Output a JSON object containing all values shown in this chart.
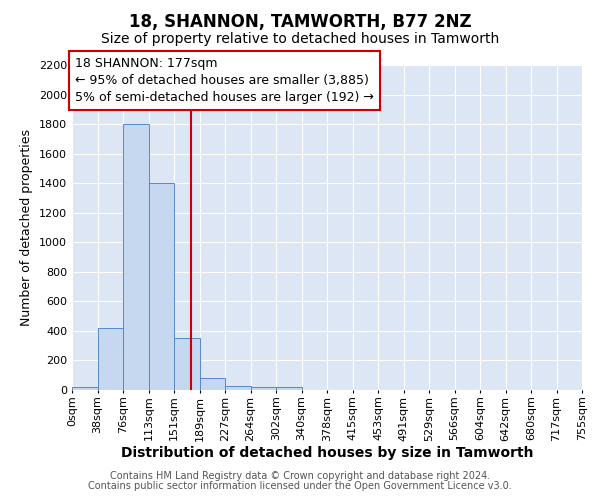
{
  "title": "18, SHANNON, TAMWORTH, B77 2NZ",
  "subtitle": "Size of property relative to detached houses in Tamworth",
  "xlabel": "Distribution of detached houses by size in Tamworth",
  "ylabel": "Number of detached properties",
  "bin_labels": [
    "0sqm",
    "38sqm",
    "76sqm",
    "113sqm",
    "151sqm",
    "189sqm",
    "227sqm",
    "264sqm",
    "302sqm",
    "340sqm",
    "378sqm",
    "415sqm",
    "453sqm",
    "491sqm",
    "529sqm",
    "566sqm",
    "604sqm",
    "642sqm",
    "680sqm",
    "717sqm",
    "755sqm"
  ],
  "bar_values": [
    20,
    420,
    1800,
    1400,
    350,
    80,
    30,
    20,
    20,
    0,
    0,
    0,
    0,
    0,
    0,
    0,
    0,
    0,
    0,
    0
  ],
  "bar_color": "#c5d8ef",
  "bar_edge_color": "#5588cc",
  "red_line_x": 4.68,
  "annotation_text": "18 SHANNON: 177sqm\n← 95% of detached houses are smaller (3,885)\n5% of semi-detached houses are larger (192) →",
  "annotation_box_color": "#ffffff",
  "annotation_box_edge_color": "#cc0000",
  "ylim": [
    0,
    2200
  ],
  "yticks": [
    0,
    200,
    400,
    600,
    800,
    1000,
    1200,
    1400,
    1600,
    1800,
    2000,
    2200
  ],
  "footer_line1": "Contains HM Land Registry data © Crown copyright and database right 2024.",
  "footer_line2": "Contains public sector information licensed under the Open Government Licence v3.0.",
  "fig_background": "#ffffff",
  "plot_background": "#dce6f5",
  "grid_color": "#ffffff",
  "title_fontsize": 12,
  "subtitle_fontsize": 10,
  "xlabel_fontsize": 10,
  "ylabel_fontsize": 9,
  "tick_fontsize": 8,
  "annotation_fontsize": 9,
  "footer_fontsize": 7
}
